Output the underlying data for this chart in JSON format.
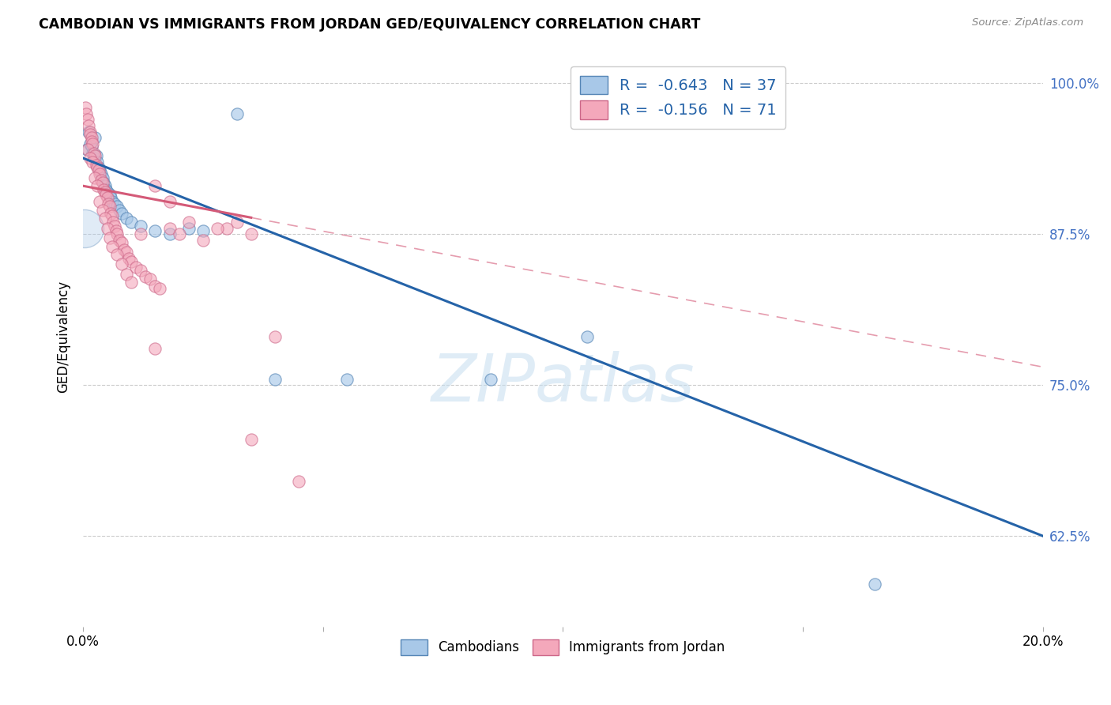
{
  "title": "CAMBODIAN VS IMMIGRANTS FROM JORDAN GED/EQUIVALENCY CORRELATION CHART",
  "source": "Source: ZipAtlas.com",
  "ylabel": "GED/Equivalency",
  "yticks": [
    62.5,
    75.0,
    87.5,
    100.0
  ],
  "ytick_labels": [
    "62.5%",
    "75.0%",
    "87.5%",
    "100.0%"
  ],
  "xmin": 0.0,
  "xmax": 20.0,
  "ymin": 55.0,
  "ymax": 103.0,
  "blue_label": "Cambodians",
  "pink_label": "Immigrants from Jordan",
  "legend_blue_R": "R = ",
  "legend_blue_Rval": "-0.643",
  "legend_blue_N": "  N = ",
  "legend_blue_Nval": "37",
  "legend_pink_R": "R = ",
  "legend_pink_Rval": "-0.156",
  "legend_pink_N": "  N = ",
  "legend_pink_Nval": "71",
  "blue_color": "#a8c8e8",
  "pink_color": "#f4a8bb",
  "blue_edge_color": "#5585b5",
  "pink_edge_color": "#cc6688",
  "blue_trend_color": "#2563a8",
  "pink_trend_color": "#d45a78",
  "watermark": "ZIPatlas",
  "blue_points": [
    [
      0.08,
      94.5
    ],
    [
      0.12,
      96.0
    ],
    [
      0.15,
      95.0
    ],
    [
      0.18,
      94.8
    ],
    [
      0.2,
      94.2
    ],
    [
      0.22,
      93.8
    ],
    [
      0.25,
      95.5
    ],
    [
      0.28,
      94.0
    ],
    [
      0.3,
      93.5
    ],
    [
      0.32,
      93.0
    ],
    [
      0.35,
      92.8
    ],
    [
      0.38,
      92.5
    ],
    [
      0.4,
      92.2
    ],
    [
      0.42,
      91.8
    ],
    [
      0.45,
      91.5
    ],
    [
      0.48,
      91.2
    ],
    [
      0.5,
      91.0
    ],
    [
      0.55,
      90.8
    ],
    [
      0.58,
      90.5
    ],
    [
      0.6,
      90.2
    ],
    [
      0.65,
      90.0
    ],
    [
      0.7,
      89.8
    ],
    [
      0.75,
      89.5
    ],
    [
      0.8,
      89.2
    ],
    [
      0.9,
      88.8
    ],
    [
      1.0,
      88.5
    ],
    [
      1.2,
      88.2
    ],
    [
      1.5,
      87.8
    ],
    [
      1.8,
      87.5
    ],
    [
      2.2,
      88.0
    ],
    [
      2.5,
      87.8
    ],
    [
      3.2,
      97.5
    ],
    [
      4.0,
      75.5
    ],
    [
      5.5,
      75.5
    ],
    [
      8.5,
      75.5
    ],
    [
      10.5,
      79.0
    ],
    [
      16.5,
      58.5
    ]
  ],
  "pink_points": [
    [
      0.05,
      98.0
    ],
    [
      0.07,
      97.5
    ],
    [
      0.1,
      97.0
    ],
    [
      0.12,
      96.5
    ],
    [
      0.14,
      96.0
    ],
    [
      0.15,
      95.8
    ],
    [
      0.17,
      95.5
    ],
    [
      0.18,
      95.2
    ],
    [
      0.2,
      95.0
    ],
    [
      0.1,
      94.5
    ],
    [
      0.22,
      94.2
    ],
    [
      0.25,
      94.0
    ],
    [
      0.15,
      93.8
    ],
    [
      0.2,
      93.5
    ],
    [
      0.28,
      93.2
    ],
    [
      0.3,
      93.0
    ],
    [
      0.32,
      92.8
    ],
    [
      0.35,
      92.5
    ],
    [
      0.25,
      92.2
    ],
    [
      0.38,
      92.0
    ],
    [
      0.4,
      91.8
    ],
    [
      0.3,
      91.5
    ],
    [
      0.42,
      91.2
    ],
    [
      0.45,
      91.0
    ],
    [
      0.48,
      90.8
    ],
    [
      0.5,
      90.5
    ],
    [
      0.35,
      90.2
    ],
    [
      0.52,
      90.0
    ],
    [
      0.55,
      89.8
    ],
    [
      0.4,
      89.5
    ],
    [
      0.58,
      89.2
    ],
    [
      0.6,
      89.0
    ],
    [
      0.45,
      88.8
    ],
    [
      0.62,
      88.5
    ],
    [
      0.65,
      88.2
    ],
    [
      0.5,
      88.0
    ],
    [
      0.68,
      87.8
    ],
    [
      0.7,
      87.5
    ],
    [
      0.55,
      87.2
    ],
    [
      0.75,
      87.0
    ],
    [
      0.8,
      86.8
    ],
    [
      0.6,
      86.5
    ],
    [
      0.85,
      86.2
    ],
    [
      0.9,
      86.0
    ],
    [
      0.7,
      85.8
    ],
    [
      0.95,
      85.5
    ],
    [
      1.0,
      85.2
    ],
    [
      0.8,
      85.0
    ],
    [
      1.1,
      84.8
    ],
    [
      1.2,
      84.5
    ],
    [
      0.9,
      84.2
    ],
    [
      1.3,
      84.0
    ],
    [
      1.4,
      83.8
    ],
    [
      1.0,
      83.5
    ],
    [
      1.5,
      83.2
    ],
    [
      1.6,
      83.0
    ],
    [
      1.2,
      87.5
    ],
    [
      1.8,
      88.0
    ],
    [
      2.0,
      87.5
    ],
    [
      1.5,
      91.5
    ],
    [
      2.2,
      88.5
    ],
    [
      2.5,
      87.0
    ],
    [
      1.8,
      90.2
    ],
    [
      3.0,
      88.0
    ],
    [
      3.2,
      88.5
    ],
    [
      2.8,
      88.0
    ],
    [
      3.5,
      87.5
    ],
    [
      4.0,
      79.0
    ],
    [
      1.5,
      78.0
    ],
    [
      3.5,
      70.5
    ],
    [
      4.5,
      67.0
    ]
  ],
  "blue_trend_x": [
    0.0,
    20.0
  ],
  "blue_trend_y": [
    93.8,
    62.5
  ],
  "pink_trend_x": [
    0.0,
    20.0
  ],
  "pink_trend_y": [
    91.5,
    76.5
  ],
  "pink_solid_end_x": 3.5,
  "large_blue_bubble": [
    0.03,
    88.0,
    1200
  ]
}
